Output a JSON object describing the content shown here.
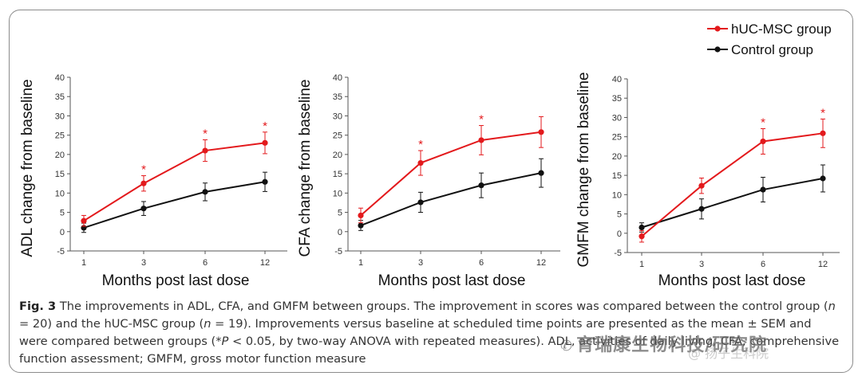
{
  "legend": {
    "items": [
      {
        "label": "hUC-MSC group",
        "color": "#e3191c"
      },
      {
        "label": "Control group",
        "color": "#111111"
      }
    ]
  },
  "chart_data": [
    {
      "type": "line",
      "id": "adl",
      "ylabel": "ADL change from baseline",
      "xlabel": "Months post last dose",
      "categories": [
        "1",
        "3",
        "6",
        "12"
      ],
      "ylim": [
        -5,
        40
      ],
      "yticks": [
        -5,
        0,
        5,
        10,
        15,
        20,
        25,
        30,
        35,
        40
      ],
      "series": [
        {
          "name": "hUC-MSC group",
          "color": "#e3191c",
          "values": [
            2.8,
            12.5,
            21.0,
            23.0
          ],
          "errors": [
            1.4,
            2.0,
            2.8,
            2.8
          ],
          "significant": [
            false,
            true,
            true,
            true
          ]
        },
        {
          "name": "Control group",
          "color": "#111111",
          "values": [
            1.0,
            6.0,
            10.3,
            12.9
          ],
          "errors": [
            1.2,
            1.8,
            2.3,
            2.5
          ],
          "significant": [
            false,
            false,
            false,
            false
          ]
        }
      ]
    },
    {
      "type": "line",
      "id": "cfa",
      "ylabel": "CFA change from baseline",
      "xlabel": "Months post last dose",
      "categories": [
        "1",
        "3",
        "6",
        "12"
      ],
      "ylim": [
        -5,
        40
      ],
      "yticks": [
        -5,
        0,
        5,
        10,
        15,
        20,
        25,
        30,
        35,
        40
      ],
      "series": [
        {
          "name": "hUC-MSC group",
          "color": "#e3191c",
          "values": [
            4.2,
            17.8,
            23.7,
            25.8
          ],
          "errors": [
            1.9,
            3.2,
            3.8,
            4.0
          ],
          "significant": [
            false,
            true,
            true,
            false
          ]
        },
        {
          "name": "Control group",
          "color": "#111111",
          "values": [
            1.6,
            7.6,
            12.0,
            15.2
          ],
          "errors": [
            1.3,
            2.6,
            3.2,
            3.7
          ],
          "significant": [
            false,
            false,
            false,
            false
          ]
        }
      ]
    },
    {
      "type": "line",
      "id": "gmfm",
      "ylabel": "GMFM change from baseline",
      "xlabel": "Months post last dose",
      "categories": [
        "1",
        "3",
        "6",
        "12"
      ],
      "ylim": [
        -5,
        40
      ],
      "yticks": [
        -5,
        0,
        5,
        10,
        15,
        20,
        25,
        30,
        35,
        40
      ],
      "series": [
        {
          "name": "hUC-MSC group",
          "color": "#e3191c",
          "values": [
            -0.8,
            12.3,
            23.8,
            25.9
          ],
          "errors": [
            1.5,
            2.0,
            3.3,
            3.7
          ],
          "significant": [
            false,
            false,
            true,
            true
          ]
        },
        {
          "name": "Control group",
          "color": "#111111",
          "values": [
            1.5,
            6.3,
            11.3,
            14.2
          ],
          "errors": [
            1.2,
            2.6,
            3.2,
            3.5
          ],
          "significant": [
            false,
            false,
            false,
            false
          ]
        }
      ]
    }
  ],
  "significance_marker": "*",
  "caption": {
    "label": "Fig. 3",
    "p1": " The improvements in ADL, CFA, and GMFM between groups. The improvement in scores was compared between the control group (",
    "n1_var": "n",
    "p2": " = 20) and the hUC-MSC group (",
    "n2_var": "n",
    "p3": " = 19). Improvements versus baseline at scheduled time points are presented as the mean ± SEM and were compared between groups (*",
    "p_var": "P",
    "p4": " < 0.05, by two-way ANOVA with repeated measures). ADL, activities of daily living; CFA, comprehensive function assessment; GMFM, gross motor function measure"
  },
  "watermark": {
    "text": "育瑞康生物科技/研究院",
    "sub": "@ 扬子生科院"
  }
}
